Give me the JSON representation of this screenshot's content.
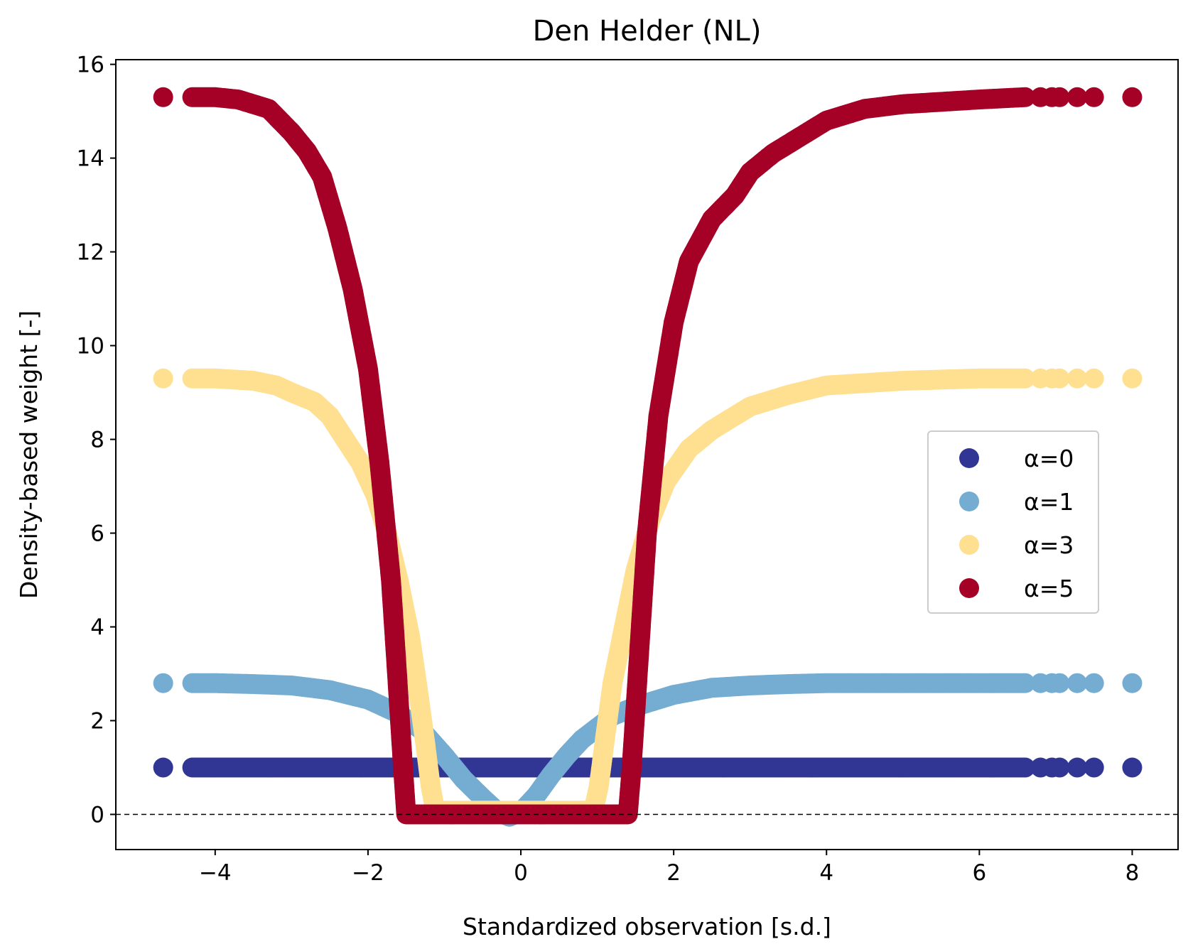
{
  "chart_data": {
    "type": "scatter",
    "title": "Den Helder (NL)",
    "xlabel": "Standardized observation [s.d.]",
    "ylabel": "Density-based weight [-]",
    "xlim": [
      -5.3,
      8.6
    ],
    "ylim": [
      -0.75,
      16.1
    ],
    "xticks": [
      -4,
      -2,
      0,
      2,
      4,
      6,
      8
    ],
    "xtick_labels": [
      "−4",
      "−2",
      "0",
      "2",
      "4",
      "6",
      "8"
    ],
    "yticks": [
      0,
      2,
      4,
      6,
      8,
      10,
      12,
      14,
      16
    ],
    "ytick_labels": [
      "0",
      "2",
      "4",
      "6",
      "8",
      "10",
      "12",
      "14",
      "16"
    ],
    "grid": false,
    "legend_position": "center-right",
    "reference_line": {
      "y": 0,
      "style": "dashed",
      "color": "#000000"
    },
    "series": [
      {
        "name": "α=0",
        "color": "#313695",
        "points": [
          [
            -4.68,
            1.0
          ],
          [
            -4.3,
            1.0
          ],
          [
            -4.0,
            1.0
          ],
          [
            -3.0,
            1.0
          ],
          [
            -2.0,
            1.0
          ],
          [
            -1.0,
            1.0
          ],
          [
            0.0,
            1.0
          ],
          [
            1.0,
            1.0
          ],
          [
            2.0,
            1.0
          ],
          [
            3.0,
            1.0
          ],
          [
            4.0,
            1.0
          ],
          [
            5.0,
            1.0
          ],
          [
            6.0,
            1.0
          ],
          [
            6.6,
            1.0
          ],
          [
            6.8,
            1.0
          ],
          [
            6.95,
            1.0
          ],
          [
            7.05,
            1.0
          ],
          [
            7.28,
            1.0
          ],
          [
            7.5,
            1.0
          ],
          [
            8.0,
            1.0
          ]
        ]
      },
      {
        "name": "α=1",
        "color": "#74add1",
        "points": [
          [
            -4.68,
            2.8
          ],
          [
            -4.3,
            2.8
          ],
          [
            -4.0,
            2.8
          ],
          [
            -3.5,
            2.78
          ],
          [
            -3.0,
            2.75
          ],
          [
            -2.5,
            2.65
          ],
          [
            -2.0,
            2.45
          ],
          [
            -1.6,
            2.15
          ],
          [
            -1.3,
            1.8
          ],
          [
            -1.0,
            1.25
          ],
          [
            -0.75,
            0.75
          ],
          [
            -0.5,
            0.35
          ],
          [
            -0.3,
            0.05
          ],
          [
            -0.15,
            -0.05
          ],
          [
            0.0,
            0.05
          ],
          [
            0.2,
            0.4
          ],
          [
            0.4,
            0.85
          ],
          [
            0.6,
            1.25
          ],
          [
            0.8,
            1.6
          ],
          [
            1.0,
            1.85
          ],
          [
            1.2,
            2.1
          ],
          [
            1.5,
            2.3
          ],
          [
            2.0,
            2.55
          ],
          [
            2.5,
            2.7
          ],
          [
            3.0,
            2.75
          ],
          [
            3.5,
            2.78
          ],
          [
            4.0,
            2.8
          ],
          [
            5.0,
            2.8
          ],
          [
            6.0,
            2.8
          ],
          [
            6.6,
            2.8
          ],
          [
            6.8,
            2.8
          ],
          [
            6.95,
            2.8
          ],
          [
            7.05,
            2.8
          ],
          [
            7.28,
            2.8
          ],
          [
            7.5,
            2.8
          ],
          [
            8.0,
            2.8
          ]
        ]
      },
      {
        "name": "α=3",
        "color": "#fee090",
        "points": [
          [
            -4.68,
            9.3
          ],
          [
            -4.3,
            9.3
          ],
          [
            -4.0,
            9.3
          ],
          [
            -3.5,
            9.25
          ],
          [
            -3.2,
            9.15
          ],
          [
            -3.0,
            9.0
          ],
          [
            -2.7,
            8.8
          ],
          [
            -2.5,
            8.5
          ],
          [
            -2.3,
            8.0
          ],
          [
            -2.1,
            7.5
          ],
          [
            -1.9,
            6.8
          ],
          [
            -1.75,
            6.0
          ],
          [
            -1.6,
            5.0
          ],
          [
            -1.45,
            3.8
          ],
          [
            -1.35,
            2.7
          ],
          [
            -1.25,
            1.5
          ],
          [
            -1.18,
            0.6
          ],
          [
            -1.12,
            0.08
          ],
          [
            -0.8,
            0.08
          ],
          [
            -0.4,
            0.08
          ],
          [
            0.0,
            0.08
          ],
          [
            0.4,
            0.08
          ],
          [
            0.8,
            0.08
          ],
          [
            0.95,
            0.08
          ],
          [
            1.02,
            0.6
          ],
          [
            1.1,
            1.6
          ],
          [
            1.2,
            2.8
          ],
          [
            1.35,
            4.0
          ],
          [
            1.5,
            5.2
          ],
          [
            1.7,
            6.3
          ],
          [
            1.9,
            7.1
          ],
          [
            2.2,
            7.8
          ],
          [
            2.5,
            8.2
          ],
          [
            2.8,
            8.5
          ],
          [
            3.0,
            8.7
          ],
          [
            3.5,
            8.95
          ],
          [
            4.0,
            9.15
          ],
          [
            5.0,
            9.25
          ],
          [
            6.0,
            9.3
          ],
          [
            6.6,
            9.3
          ],
          [
            6.8,
            9.3
          ],
          [
            6.95,
            9.3
          ],
          [
            7.05,
            9.3
          ],
          [
            7.28,
            9.3
          ],
          [
            7.5,
            9.3
          ],
          [
            8.0,
            9.3
          ]
        ]
      },
      {
        "name": "α=5",
        "color": "#a50026",
        "points": [
          [
            -4.68,
            15.3
          ],
          [
            -4.3,
            15.3
          ],
          [
            -4.0,
            15.3
          ],
          [
            -3.7,
            15.25
          ],
          [
            -3.3,
            15.05
          ],
          [
            -3.0,
            14.55
          ],
          [
            -2.8,
            14.15
          ],
          [
            -2.6,
            13.6
          ],
          [
            -2.4,
            12.5
          ],
          [
            -2.2,
            11.2
          ],
          [
            -2.0,
            9.5
          ],
          [
            -1.85,
            7.5
          ],
          [
            -1.7,
            5.0
          ],
          [
            -1.62,
            3.0
          ],
          [
            -1.55,
            1.2
          ],
          [
            -1.5,
            0.0
          ],
          [
            -1.3,
            0.0
          ],
          [
            -1.15,
            0.0
          ],
          [
            1.15,
            0.0
          ],
          [
            1.3,
            0.0
          ],
          [
            1.4,
            0.0
          ],
          [
            1.45,
            1.0
          ],
          [
            1.55,
            3.5
          ],
          [
            1.65,
            6.0
          ],
          [
            1.8,
            8.5
          ],
          [
            2.0,
            10.5
          ],
          [
            2.2,
            11.8
          ],
          [
            2.5,
            12.7
          ],
          [
            2.8,
            13.2
          ],
          [
            3.0,
            13.7
          ],
          [
            3.3,
            14.1
          ],
          [
            3.6,
            14.4
          ],
          [
            4.0,
            14.8
          ],
          [
            4.5,
            15.05
          ],
          [
            5.0,
            15.15
          ],
          [
            6.0,
            15.25
          ],
          [
            6.6,
            15.3
          ],
          [
            6.8,
            15.3
          ],
          [
            6.95,
            15.3
          ],
          [
            7.05,
            15.3
          ],
          [
            7.28,
            15.3
          ],
          [
            7.5,
            15.3
          ],
          [
            8.0,
            15.3
          ]
        ]
      }
    ]
  }
}
